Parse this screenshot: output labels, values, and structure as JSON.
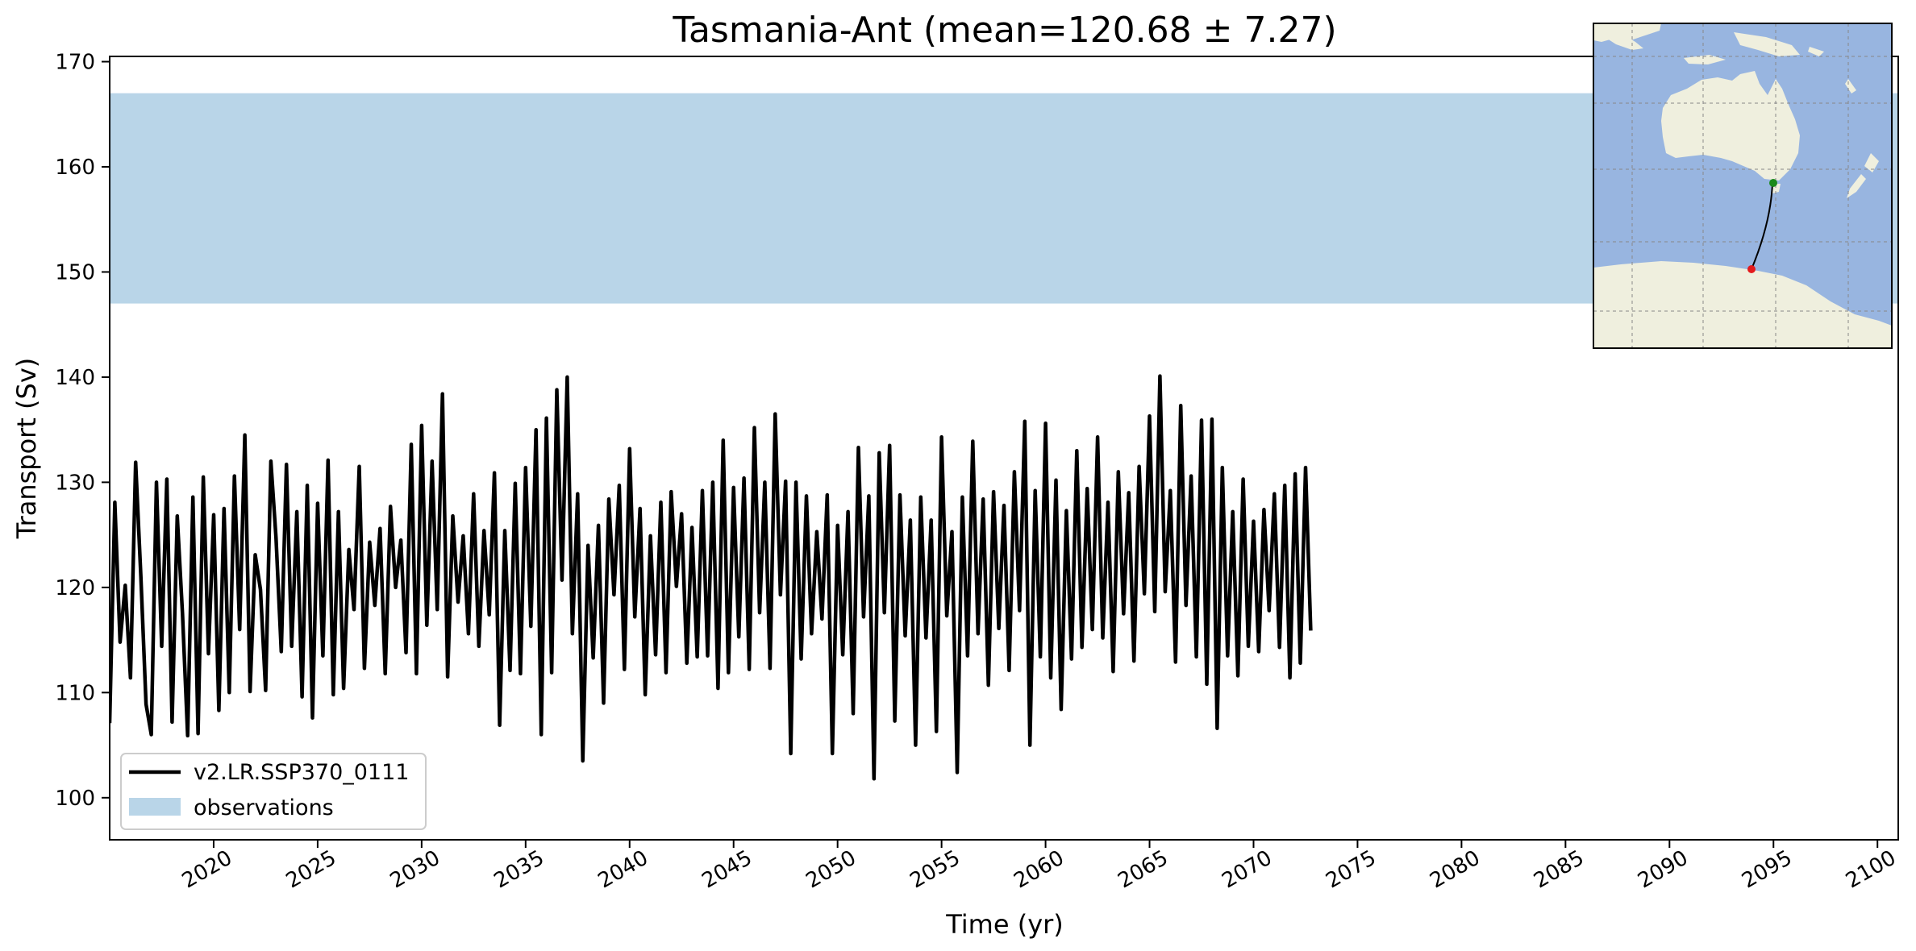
{
  "chart_data": {
    "type": "line",
    "title": "Tasmania-Ant (mean=120.68 ± 7.27)",
    "xlabel": "Time (yr)",
    "ylabel": "Transport (Sv)",
    "xlim": [
      2015,
      2101
    ],
    "ylim": [
      96,
      170.5
    ],
    "xticks": [
      2020,
      2025,
      2030,
      2035,
      2040,
      2045,
      2050,
      2055,
      2060,
      2065,
      2070,
      2075,
      2080,
      2085,
      2090,
      2095,
      2100
    ],
    "yticks": [
      100,
      110,
      120,
      130,
      140,
      150,
      160,
      170
    ],
    "grid": false,
    "legend_location": "lower left",
    "series": [
      {
        "name": "v2.LR.SSP370_0111",
        "color": "#000000",
        "x_start": 2015.0,
        "x_step": 0.25,
        "values": [
          107.1,
          128.1,
          114.8,
          120.2,
          111.4,
          131.9,
          121.0,
          108.9,
          106.0,
          130.0,
          114.4,
          130.3,
          107.2,
          126.8,
          117.5,
          105.9,
          128.6,
          106.1,
          130.5,
          113.7,
          126.9,
          108.3,
          127.5,
          110.0,
          130.6,
          116.0,
          134.5,
          110.1,
          123.1,
          119.8,
          110.2,
          132.0,
          124.7,
          113.9,
          131.7,
          114.4,
          127.2,
          109.6,
          129.7,
          107.6,
          128.0,
          113.5,
          132.1,
          109.8,
          127.2,
          110.4,
          123.6,
          117.9,
          131.5,
          112.3,
          124.3,
          118.3,
          125.6,
          111.8,
          127.7,
          120.0,
          124.5,
          113.8,
          133.6,
          111.8,
          135.4,
          116.4,
          132.0,
          117.9,
          138.4,
          111.5,
          126.8,
          118.6,
          124.9,
          115.6,
          128.9,
          114.4,
          125.4,
          117.4,
          130.9,
          106.9,
          125.4,
          112.1,
          129.9,
          111.8,
          131.4,
          116.3,
          135.0,
          106.0,
          136.1,
          111.9,
          138.8,
          120.7,
          140.0,
          115.6,
          128.9,
          103.5,
          124.0,
          113.3,
          125.9,
          109.0,
          128.4,
          119.3,
          129.7,
          112.2,
          133.2,
          117.2,
          127.5,
          109.8,
          124.9,
          113.6,
          128.1,
          111.9,
          129.1,
          120.1,
          127.0,
          112.8,
          125.7,
          113.4,
          129.2,
          113.5,
          130.0,
          110.4,
          134.0,
          111.9,
          129.5,
          115.3,
          130.4,
          112.2,
          135.2,
          117.6,
          130.0,
          112.3,
          136.5,
          119.3,
          130.1,
          104.2,
          130.0,
          113.2,
          128.7,
          115.6,
          125.3,
          117.0,
          128.8,
          104.2,
          125.9,
          113.6,
          127.2,
          108.0,
          133.3,
          117.2,
          128.7,
          101.8,
          132.8,
          117.6,
          133.5,
          107.3,
          128.8,
          115.4,
          126.4,
          105.0,
          128.6,
          115.2,
          126.4,
          106.3,
          134.3,
          117.3,
          125.3,
          102.4,
          128.6,
          113.5,
          133.9,
          115.6,
          128.4,
          110.7,
          129.1,
          116.1,
          127.8,
          112.1,
          131.0,
          117.8,
          135.8,
          105.0,
          129.2,
          113.4,
          135.6,
          111.4,
          130.2,
          108.4,
          127.3,
          113.2,
          133.0,
          114.3,
          129.4,
          116.0,
          134.3,
          115.2,
          128.1,
          112.0,
          131.0,
          117.5,
          129.0,
          113.0,
          131.5,
          119.4,
          136.3,
          117.7,
          140.1,
          119.6,
          129.2,
          112.9,
          137.3,
          118.3,
          130.6,
          113.4,
          135.9,
          110.8,
          136.0,
          106.6,
          131.4,
          113.5,
          127.2,
          111.6,
          130.3,
          114.4,
          126.3,
          113.9,
          127.4,
          117.8,
          128.9,
          114.3,
          129.7,
          111.4,
          130.8,
          112.8,
          131.4,
          115.9
        ]
      }
    ],
    "bands": [
      {
        "name": "observations",
        "ymin": 147.0,
        "ymax": 167.0,
        "color": "#b9d5e8"
      }
    ],
    "inset_map": {
      "ocean_color": "#98b5e0",
      "land_color": "#efefde",
      "section_line_color": "#000000",
      "start_marker_color": "#1a8a1a",
      "end_marker_color": "#e41a1c"
    }
  }
}
